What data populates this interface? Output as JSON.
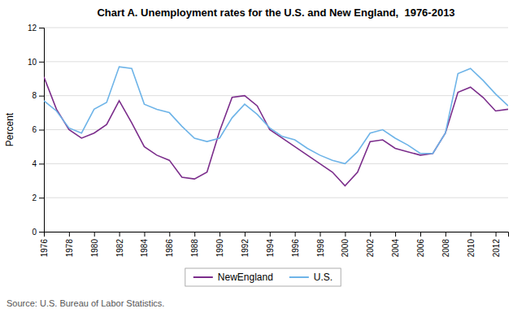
{
  "chart_data": {
    "type": "line",
    "title": "Chart A. Unemployment rates for the U.S. and New England,  1976-2013",
    "y_label": "Percent",
    "source": "Source: U.S. Bureau of Labor Statistics.",
    "x": [
      1976,
      1977,
      1978,
      1979,
      1980,
      1981,
      1982,
      1983,
      1984,
      1985,
      1986,
      1987,
      1988,
      1989,
      1990,
      1991,
      1992,
      1993,
      1994,
      1995,
      1996,
      1997,
      1998,
      1999,
      2000,
      2001,
      2002,
      2003,
      2004,
      2005,
      2006,
      2007,
      2008,
      2009,
      2010,
      2011,
      2012,
      2013
    ],
    "series": [
      {
        "name": "NewEngland",
        "color": "#7B2D8B",
        "values": [
          9.1,
          7.2,
          6.0,
          5.5,
          5.8,
          6.3,
          7.7,
          6.4,
          5.0,
          4.5,
          4.2,
          3.2,
          3.1,
          3.5,
          5.9,
          7.9,
          8.0,
          7.4,
          6.0,
          5.5,
          5.0,
          4.5,
          4.0,
          3.5,
          2.7,
          3.5,
          5.3,
          5.4,
          4.9,
          4.7,
          4.5,
          4.6,
          5.8,
          8.2,
          8.5,
          7.9,
          7.1,
          7.2
        ]
      },
      {
        "name": "U.S.",
        "color": "#6EB4E8",
        "values": [
          7.7,
          7.1,
          6.1,
          5.8,
          7.2,
          7.6,
          9.7,
          9.6,
          7.5,
          7.2,
          7.0,
          6.2,
          5.5,
          5.3,
          5.5,
          6.7,
          7.5,
          6.9,
          6.1,
          5.6,
          5.4,
          4.9,
          4.5,
          4.2,
          4.0,
          4.7,
          5.8,
          6.0,
          5.5,
          5.1,
          4.6,
          4.6,
          5.8,
          9.3,
          9.6,
          8.9,
          8.1,
          7.4
        ]
      }
    ],
    "xlim": [
      1976,
      2013
    ],
    "xticks": [
      1976,
      1978,
      1980,
      1982,
      1984,
      1986,
      1988,
      1990,
      1992,
      1994,
      1996,
      1998,
      2000,
      2002,
      2004,
      2006,
      2008,
      2010,
      2012
    ],
    "ylim": [
      0,
      12
    ],
    "yticks": [
      0,
      2,
      4,
      6,
      8,
      10,
      12
    ],
    "grid": true,
    "legend": "bottom"
  }
}
